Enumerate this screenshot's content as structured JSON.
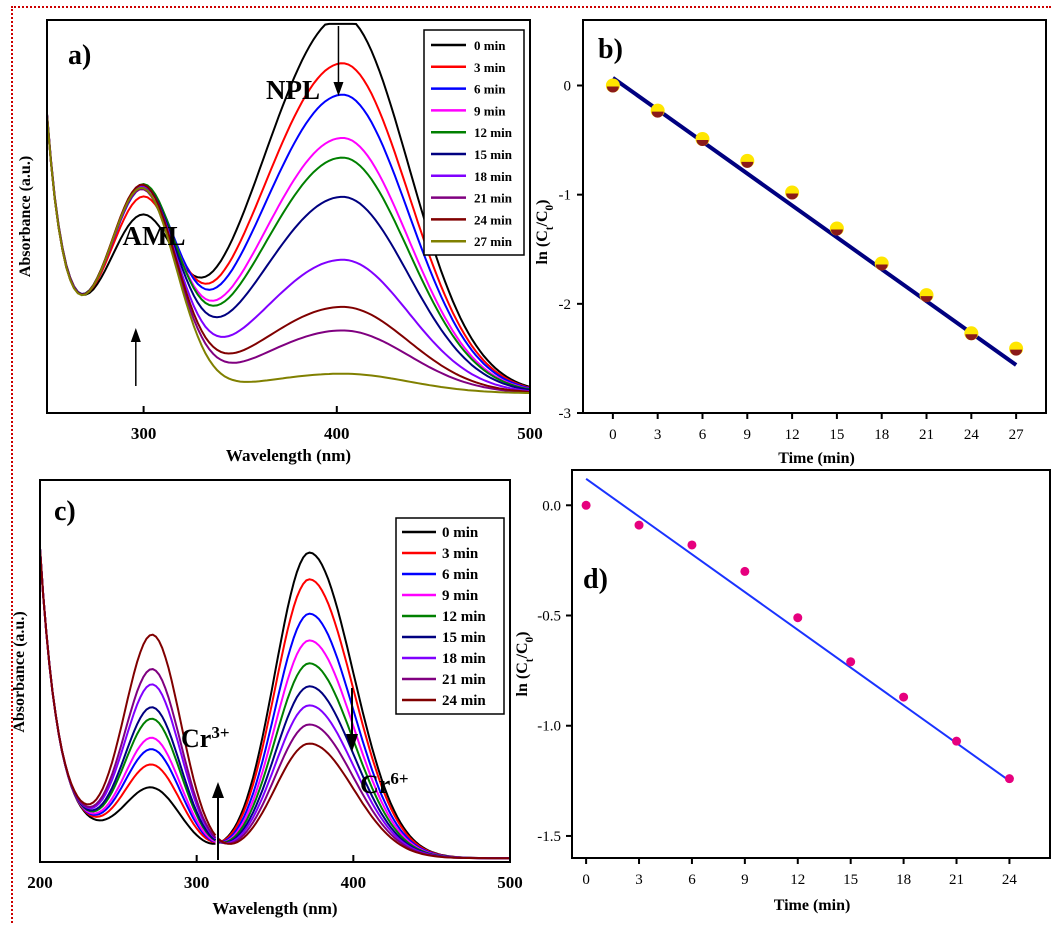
{
  "colors": {
    "frame": "#cc0000",
    "series_palette": [
      "#000000",
      "#ff0000",
      "#0000ff",
      "#ff00ff",
      "#008000",
      "#000080",
      "#8000ff",
      "#800080",
      "#800000",
      "#808000"
    ],
    "line_b": "#000080",
    "marker_b": "#ffe600",
    "line_d": "#1a33ff",
    "marker_d": "#e6007e"
  },
  "chart_data": [
    {
      "id": "a",
      "type": "line",
      "panel_label": "a)",
      "xlabel": "Wavelength (nm)",
      "ylabel": "Absorbance (a.u.)",
      "xlim": [
        250,
        500
      ],
      "ylim": [
        0,
        1
      ],
      "xticks": [
        300,
        400,
        500
      ],
      "yticks": [],
      "legend_position": "top-right",
      "annotations": [
        {
          "text": "NPL",
          "arrow": "down",
          "x": 405
        },
        {
          "text": "AML",
          "arrow": "up",
          "x": 297
        }
      ],
      "peaks": {
        "NPL_nm": 403,
        "AML_nm": 300
      },
      "series": [
        {
          "name": "0 min",
          "npl": 0.96,
          "aml": 0.31
        },
        {
          "name": "3 min",
          "npl": 0.84,
          "aml": 0.37
        },
        {
          "name": "6 min",
          "npl": 0.76,
          "aml": 0.4
        },
        {
          "name": "9 min",
          "npl": 0.65,
          "aml": 0.41
        },
        {
          "name": "12 min",
          "npl": 0.6,
          "aml": 0.42
        },
        {
          "name": "15 min",
          "npl": 0.5,
          "aml": 0.42
        },
        {
          "name": "18 min",
          "npl": 0.34,
          "aml": 0.43
        },
        {
          "name": "21 min",
          "npl": 0.16,
          "aml": 0.43
        },
        {
          "name": "24 min",
          "npl": 0.22,
          "aml": 0.44
        },
        {
          "name": "27 min",
          "npl": 0.05,
          "aml": 0.44
        }
      ]
    },
    {
      "id": "b",
      "type": "scatter",
      "panel_label": "b)",
      "xlabel": "Time (min)",
      "ylabel": "ln (C_t/C_0)",
      "xlim": [
        -2,
        29
      ],
      "ylim": [
        -3,
        0.6
      ],
      "xticks": [
        0,
        3,
        6,
        9,
        12,
        15,
        18,
        21,
        24,
        27
      ],
      "yticks": [
        0,
        -1,
        -2,
        -3
      ],
      "x": [
        0,
        3,
        6,
        9,
        12,
        15,
        18,
        21,
        24,
        27
      ],
      "y": [
        0.0,
        -0.23,
        -0.49,
        -0.69,
        -0.98,
        -1.31,
        -1.63,
        -1.92,
        -2.27,
        -2.41
      ],
      "fit": {
        "x": [
          0,
          27
        ],
        "y": [
          0.07,
          -2.56
        ]
      }
    },
    {
      "id": "c",
      "type": "line",
      "panel_label": "c)",
      "xlabel": "Wavelength (nm)",
      "ylabel": "Absorbance (a.u.)",
      "xlim": [
        200,
        500
      ],
      "ylim": [
        0,
        1
      ],
      "xticks": [
        200,
        300,
        400,
        500
      ],
      "yticks": [],
      "legend_position": "top-right",
      "annotations": [
        {
          "text": "Cr",
          "sup": "3+",
          "arrow": "up",
          "x": 312
        },
        {
          "text": "Cr",
          "sup": "6+",
          "arrow": "down",
          "x": 355
        }
      ],
      "peaks": {
        "Cr6_nm": 372,
        "Cr3_nm": 272
      },
      "series": [
        {
          "name": "0 min",
          "p372": 0.8,
          "p272": 0.16
        },
        {
          "name": "3 min",
          "p372": 0.73,
          "p272": 0.22
        },
        {
          "name": "6 min",
          "p372": 0.64,
          "p272": 0.26
        },
        {
          "name": "9 min",
          "p372": 0.57,
          "p272": 0.29
        },
        {
          "name": "12 min",
          "p372": 0.51,
          "p272": 0.34
        },
        {
          "name": "15 min",
          "p372": 0.45,
          "p272": 0.37
        },
        {
          "name": "18 min",
          "p372": 0.4,
          "p272": 0.43
        },
        {
          "name": "21 min",
          "p372": 0.35,
          "p272": 0.47
        },
        {
          "name": "24 min",
          "p372": 0.3,
          "p272": 0.56
        }
      ]
    },
    {
      "id": "d",
      "type": "scatter",
      "panel_label": "d)",
      "xlabel": "Time (min)",
      "ylabel": "ln (C_t/C_0)",
      "xlim": [
        -0.8,
        26.3
      ],
      "ylim": [
        -1.6,
        0.16
      ],
      "xticks": [
        0,
        3,
        6,
        9,
        12,
        15,
        18,
        21,
        24
      ],
      "yticks": [
        0.0,
        -0.5,
        -1.0,
        -1.5
      ],
      "ytick_labels": [
        "0.0",
        "-0.5",
        "-1.0",
        "-1.5"
      ],
      "x": [
        0,
        3,
        6,
        9,
        12,
        15,
        18,
        21,
        24
      ],
      "y": [
        0.0,
        -0.09,
        -0.18,
        -0.3,
        -0.51,
        -0.71,
        -0.87,
        -1.07,
        -1.24
      ],
      "fit": {
        "x": [
          0,
          24
        ],
        "y": [
          0.12,
          -1.25
        ]
      }
    }
  ]
}
